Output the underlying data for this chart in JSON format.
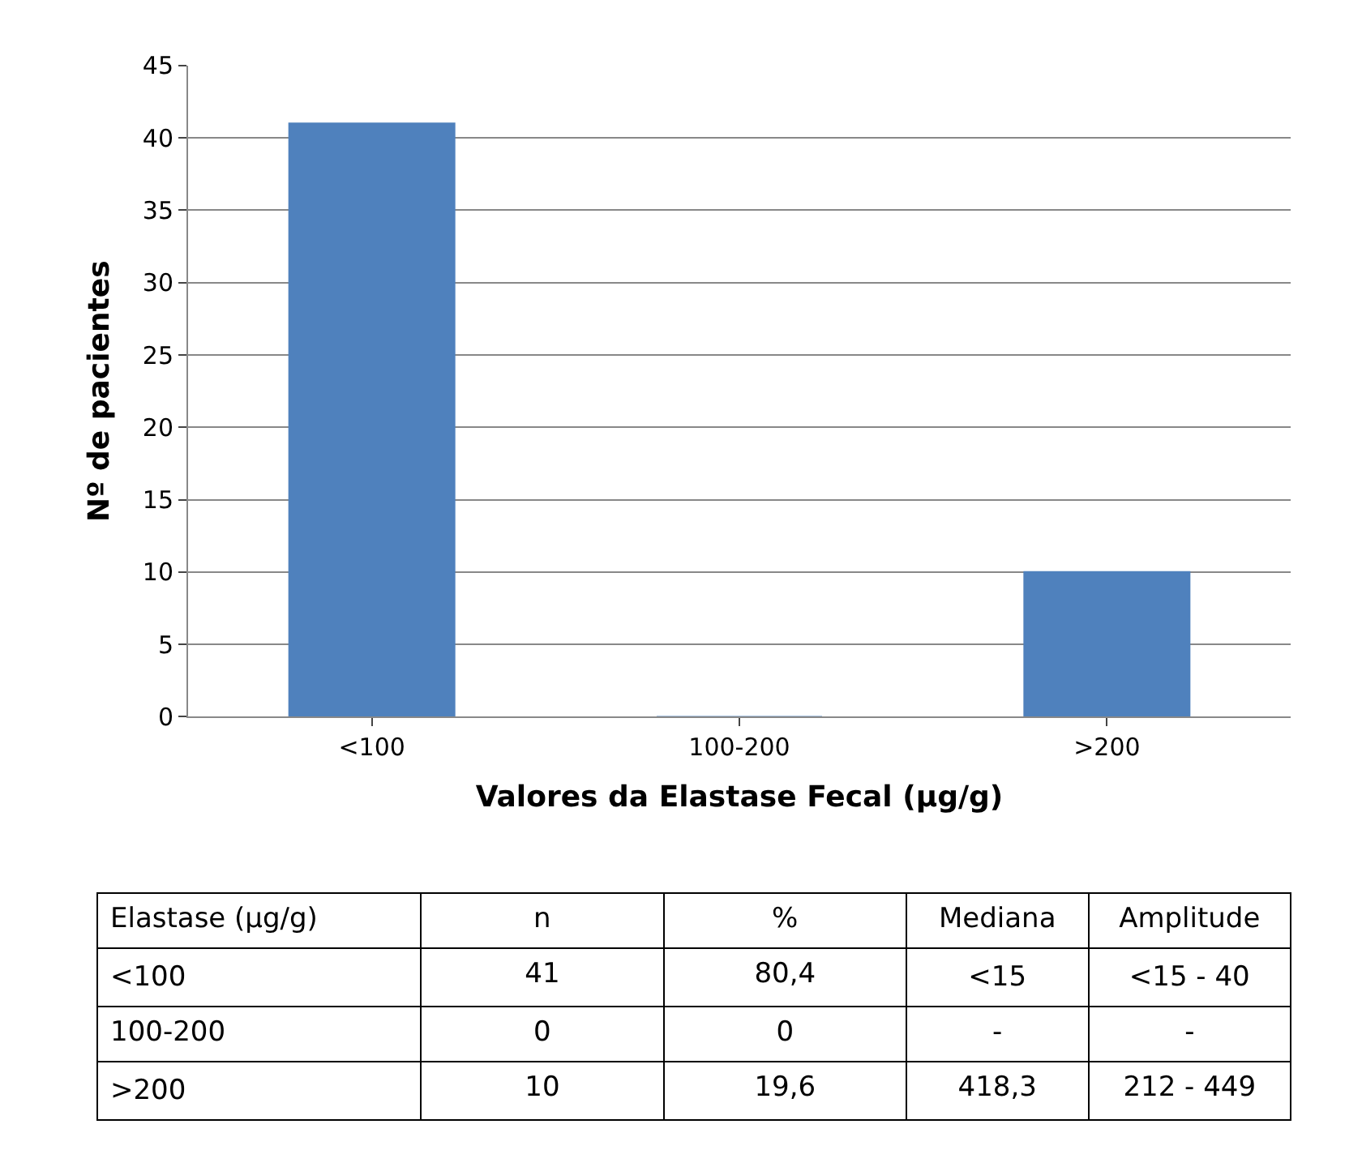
{
  "chart_data": [
    {
      "type": "bar",
      "xlabel": "Valores da Elastase Fecal (µg/g)",
      "ylabel": "Nº de pacientes",
      "categories": [
        "<100",
        "100-200",
        ">200"
      ],
      "values": [
        41,
        0,
        10
      ],
      "color": "#4f81bd",
      "ylim": [
        0,
        45
      ],
      "yticks": [
        0,
        5,
        10,
        15,
        20,
        25,
        30,
        35,
        40,
        45
      ],
      "grid": "y",
      "legend": false
    },
    {
      "type": "other",
      "categories": [
        "Elastase (µg/g)",
        "n",
        "%",
        "Mediana",
        "Amplitude"
      ],
      "cell_labels": [
        [
          "<100",
          "41",
          "80,4",
          "<15",
          "<15 - 40"
        ],
        [
          "100-200",
          "0",
          "0",
          "-",
          "-"
        ],
        [
          ">200",
          "10",
          "19,6",
          "418,3",
          "212 - 449"
        ]
      ]
    }
  ]
}
